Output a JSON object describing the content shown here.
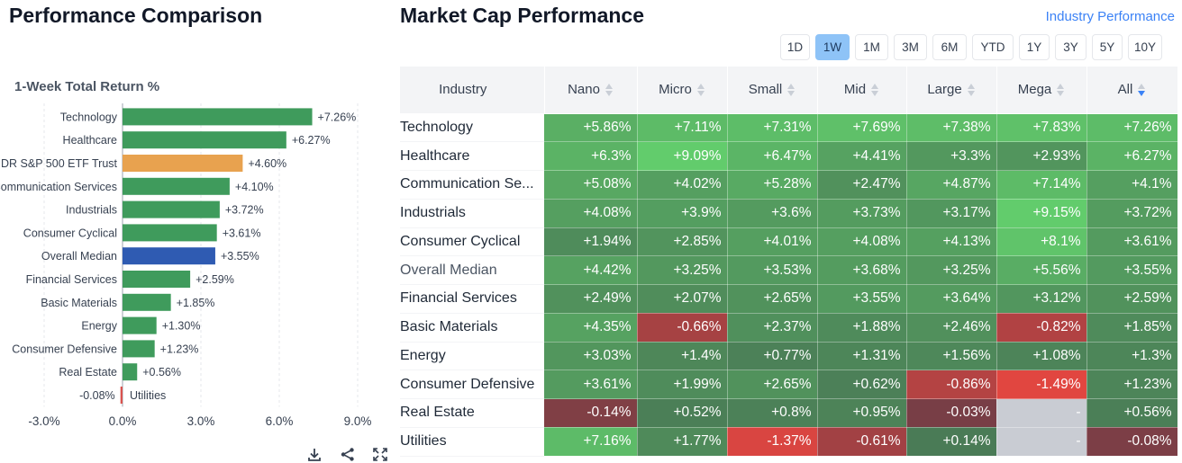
{
  "left_panel": {
    "title": "Performance Comparison"
  },
  "chart_data": {
    "type": "bar",
    "orientation": "horizontal",
    "title": "1-Week Total Return %",
    "categories": [
      "Technology",
      "Healthcare",
      "DR S&P 500 ETF Trust",
      "Communication Services",
      "Industrials",
      "Consumer Cyclical",
      "Overall Median",
      "Financial Services",
      "Basic Materials",
      "Energy",
      "Consumer Defensive",
      "Real Estate",
      "Utilities"
    ],
    "values": [
      7.26,
      6.27,
      4.6,
      4.1,
      3.72,
      3.61,
      3.55,
      2.59,
      1.85,
      1.3,
      1.23,
      0.56,
      -0.08
    ],
    "value_labels": [
      "+7.26%",
      "+6.27%",
      "+4.60%",
      "+4.10%",
      "+3.72%",
      "+3.61%",
      "+3.55%",
      "+2.59%",
      "+1.85%",
      "+1.30%",
      "+1.23%",
      "+0.56%",
      "-0.08%"
    ],
    "bar_colors": [
      "#3f9b5c",
      "#3f9b5c",
      "#e8a24f",
      "#3f9b5c",
      "#3f9b5c",
      "#3f9b5c",
      "#2f5bb2",
      "#3f9b5c",
      "#3f9b5c",
      "#3f9b5c",
      "#3f9b5c",
      "#3f9b5c",
      "#d9534f"
    ],
    "x_ticks": [
      -3,
      0,
      3,
      6,
      9
    ],
    "x_tick_labels": [
      "-3.0%",
      "0.0%",
      "3.0%",
      "6.0%",
      "9.0%"
    ],
    "xlim": [
      -3,
      9
    ],
    "grid": true
  },
  "chart_tools": [
    {
      "icon": "download-icon"
    },
    {
      "icon": "share-icon"
    },
    {
      "icon": "expand-icon"
    }
  ],
  "right_panel": {
    "title": "Market Cap Performance",
    "link": "Industry Performance",
    "periods": [
      "1D",
      "1W",
      "1M",
      "3M",
      "6M",
      "YTD",
      "1Y",
      "3Y",
      "5Y",
      "10Y"
    ],
    "active_period": "1W",
    "table": {
      "columns": [
        "Industry",
        "Nano",
        "Micro",
        "Small",
        "Mid",
        "Large",
        "Mega",
        "All"
      ],
      "sorted_column": "All",
      "rows": [
        {
          "name": "Technology",
          "values": [
            5.86,
            7.11,
            7.31,
            7.69,
            7.38,
            7.83,
            7.26
          ],
          "labels": [
            "+5.86%",
            "+7.11%",
            "+7.31%",
            "+7.69%",
            "+7.38%",
            "+7.83%",
            "+7.26%"
          ]
        },
        {
          "name": "Healthcare",
          "values": [
            6.3,
            9.09,
            6.47,
            4.41,
            3.3,
            2.93,
            6.27
          ],
          "labels": [
            "+6.3%",
            "+9.09%",
            "+6.47%",
            "+4.41%",
            "+3.3%",
            "+2.93%",
            "+6.27%"
          ]
        },
        {
          "name": "Communication Se...",
          "values": [
            5.08,
            4.02,
            5.28,
            2.47,
            4.87,
            7.14,
            4.1
          ],
          "labels": [
            "+5.08%",
            "+4.02%",
            "+5.28%",
            "+2.47%",
            "+4.87%",
            "+7.14%",
            "+4.1%"
          ]
        },
        {
          "name": "Industrials",
          "values": [
            4.08,
            3.9,
            3.6,
            3.73,
            3.17,
            9.15,
            3.72
          ],
          "labels": [
            "+4.08%",
            "+3.9%",
            "+3.6%",
            "+3.73%",
            "+3.17%",
            "+9.15%",
            "+3.72%"
          ]
        },
        {
          "name": "Consumer Cyclical",
          "values": [
            1.94,
            2.85,
            4.01,
            4.08,
            4.13,
            8.1,
            3.61
          ],
          "labels": [
            "+1.94%",
            "+2.85%",
            "+4.01%",
            "+4.08%",
            "+4.13%",
            "+8.1%",
            "+3.61%"
          ]
        },
        {
          "name": "Overall Median",
          "muted": true,
          "values": [
            4.42,
            3.25,
            3.53,
            3.68,
            3.25,
            5.56,
            3.55
          ],
          "labels": [
            "+4.42%",
            "+3.25%",
            "+3.53%",
            "+3.68%",
            "+3.25%",
            "+5.56%",
            "+3.55%"
          ]
        },
        {
          "name": "Financial Services",
          "values": [
            2.49,
            2.07,
            2.65,
            3.55,
            3.64,
            3.12,
            2.59
          ],
          "labels": [
            "+2.49%",
            "+2.07%",
            "+2.65%",
            "+3.55%",
            "+3.64%",
            "+3.12%",
            "+2.59%"
          ]
        },
        {
          "name": "Basic Materials",
          "values": [
            4.35,
            -0.66,
            2.37,
            1.88,
            2.46,
            -0.82,
            1.85
          ],
          "labels": [
            "+4.35%",
            "-0.66%",
            "+2.37%",
            "+1.88%",
            "+2.46%",
            "-0.82%",
            "+1.85%"
          ]
        },
        {
          "name": "Energy",
          "values": [
            3.03,
            1.4,
            0.77,
            1.31,
            1.56,
            1.08,
            1.3
          ],
          "labels": [
            "+3.03%",
            "+1.4%",
            "+0.77%",
            "+1.31%",
            "+1.56%",
            "+1.08%",
            "+1.3%"
          ]
        },
        {
          "name": "Consumer Defensive",
          "values": [
            3.61,
            1.99,
            2.65,
            0.62,
            -0.86,
            -1.49,
            1.23
          ],
          "labels": [
            "+3.61%",
            "+1.99%",
            "+2.65%",
            "+0.62%",
            "-0.86%",
            "-1.49%",
            "+1.23%"
          ]
        },
        {
          "name": "Real Estate",
          "values": [
            -0.14,
            0.52,
            0.8,
            0.95,
            -0.03,
            null,
            0.56
          ],
          "labels": [
            "-0.14%",
            "+0.52%",
            "+0.8%",
            "+0.95%",
            "-0.03%",
            "-",
            "+0.56%"
          ]
        },
        {
          "name": "Utilities",
          "values": [
            7.16,
            1.77,
            -1.37,
            -0.61,
            0.14,
            null,
            -0.08
          ],
          "labels": [
            "+7.16%",
            "+1.77%",
            "-1.37%",
            "-0.61%",
            "+0.14%",
            "-",
            "-0.08%"
          ]
        }
      ]
    }
  },
  "colors": {
    "positive_bar": "#3f9b5c",
    "benchmark_bar": "#e8a24f",
    "median_bar": "#2f5bb2",
    "negative_bar": "#d9534f",
    "accent": "#3b82f6",
    "active_period_bg": "#8ec3f7",
    "cell_empty": "#c9ccd3"
  }
}
